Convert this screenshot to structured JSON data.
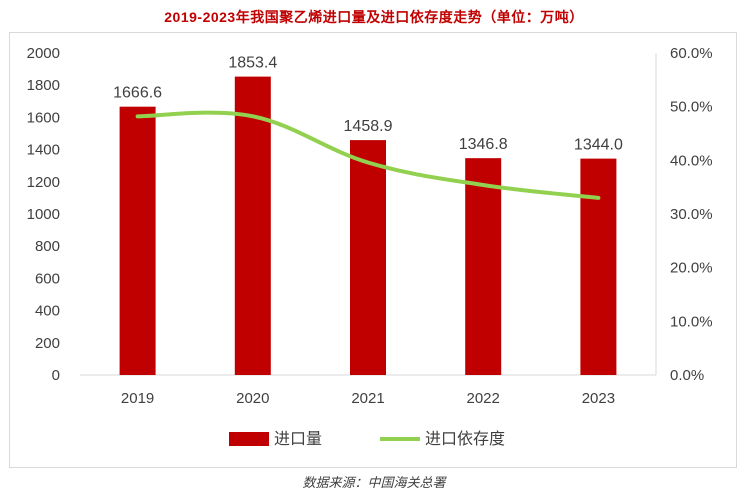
{
  "title": "2019-2023年我国聚乙烯进口量及进口依存度走势（单位：万吨）",
  "source": "数据来源：中国海关总署",
  "colors": {
    "bar": "#c00000",
    "line": "#92d050",
    "axis_text": "#404040"
  },
  "chart_data": {
    "type": "bar",
    "categories": [
      "2019",
      "2020",
      "2021",
      "2022",
      "2023"
    ],
    "series": [
      {
        "name": "进口量",
        "type": "bar",
        "axis": "left",
        "values": [
          1666.6,
          1853.4,
          1458.9,
          1346.8,
          1344.0
        ],
        "labels": [
          "1666.6",
          "1853.4",
          "1458.9",
          "1346.8",
          "1344.0"
        ]
      },
      {
        "name": "进口依存度",
        "type": "line",
        "axis": "right",
        "values": [
          48.2,
          48.2,
          39.6,
          35.4,
          33.0
        ]
      }
    ],
    "y_left": {
      "min": 0,
      "max": 2000,
      "ticks": [
        "0",
        "200",
        "400",
        "600",
        "800",
        "1000",
        "1200",
        "1400",
        "1600",
        "1800",
        "2000"
      ]
    },
    "y_right": {
      "min": 0,
      "max": 60,
      "ticks": [
        "0.0%",
        "10.0%",
        "20.0%",
        "30.0%",
        "40.0%",
        "50.0%",
        "60.0%"
      ]
    },
    "legend_position": "bottom",
    "grid": false
  }
}
